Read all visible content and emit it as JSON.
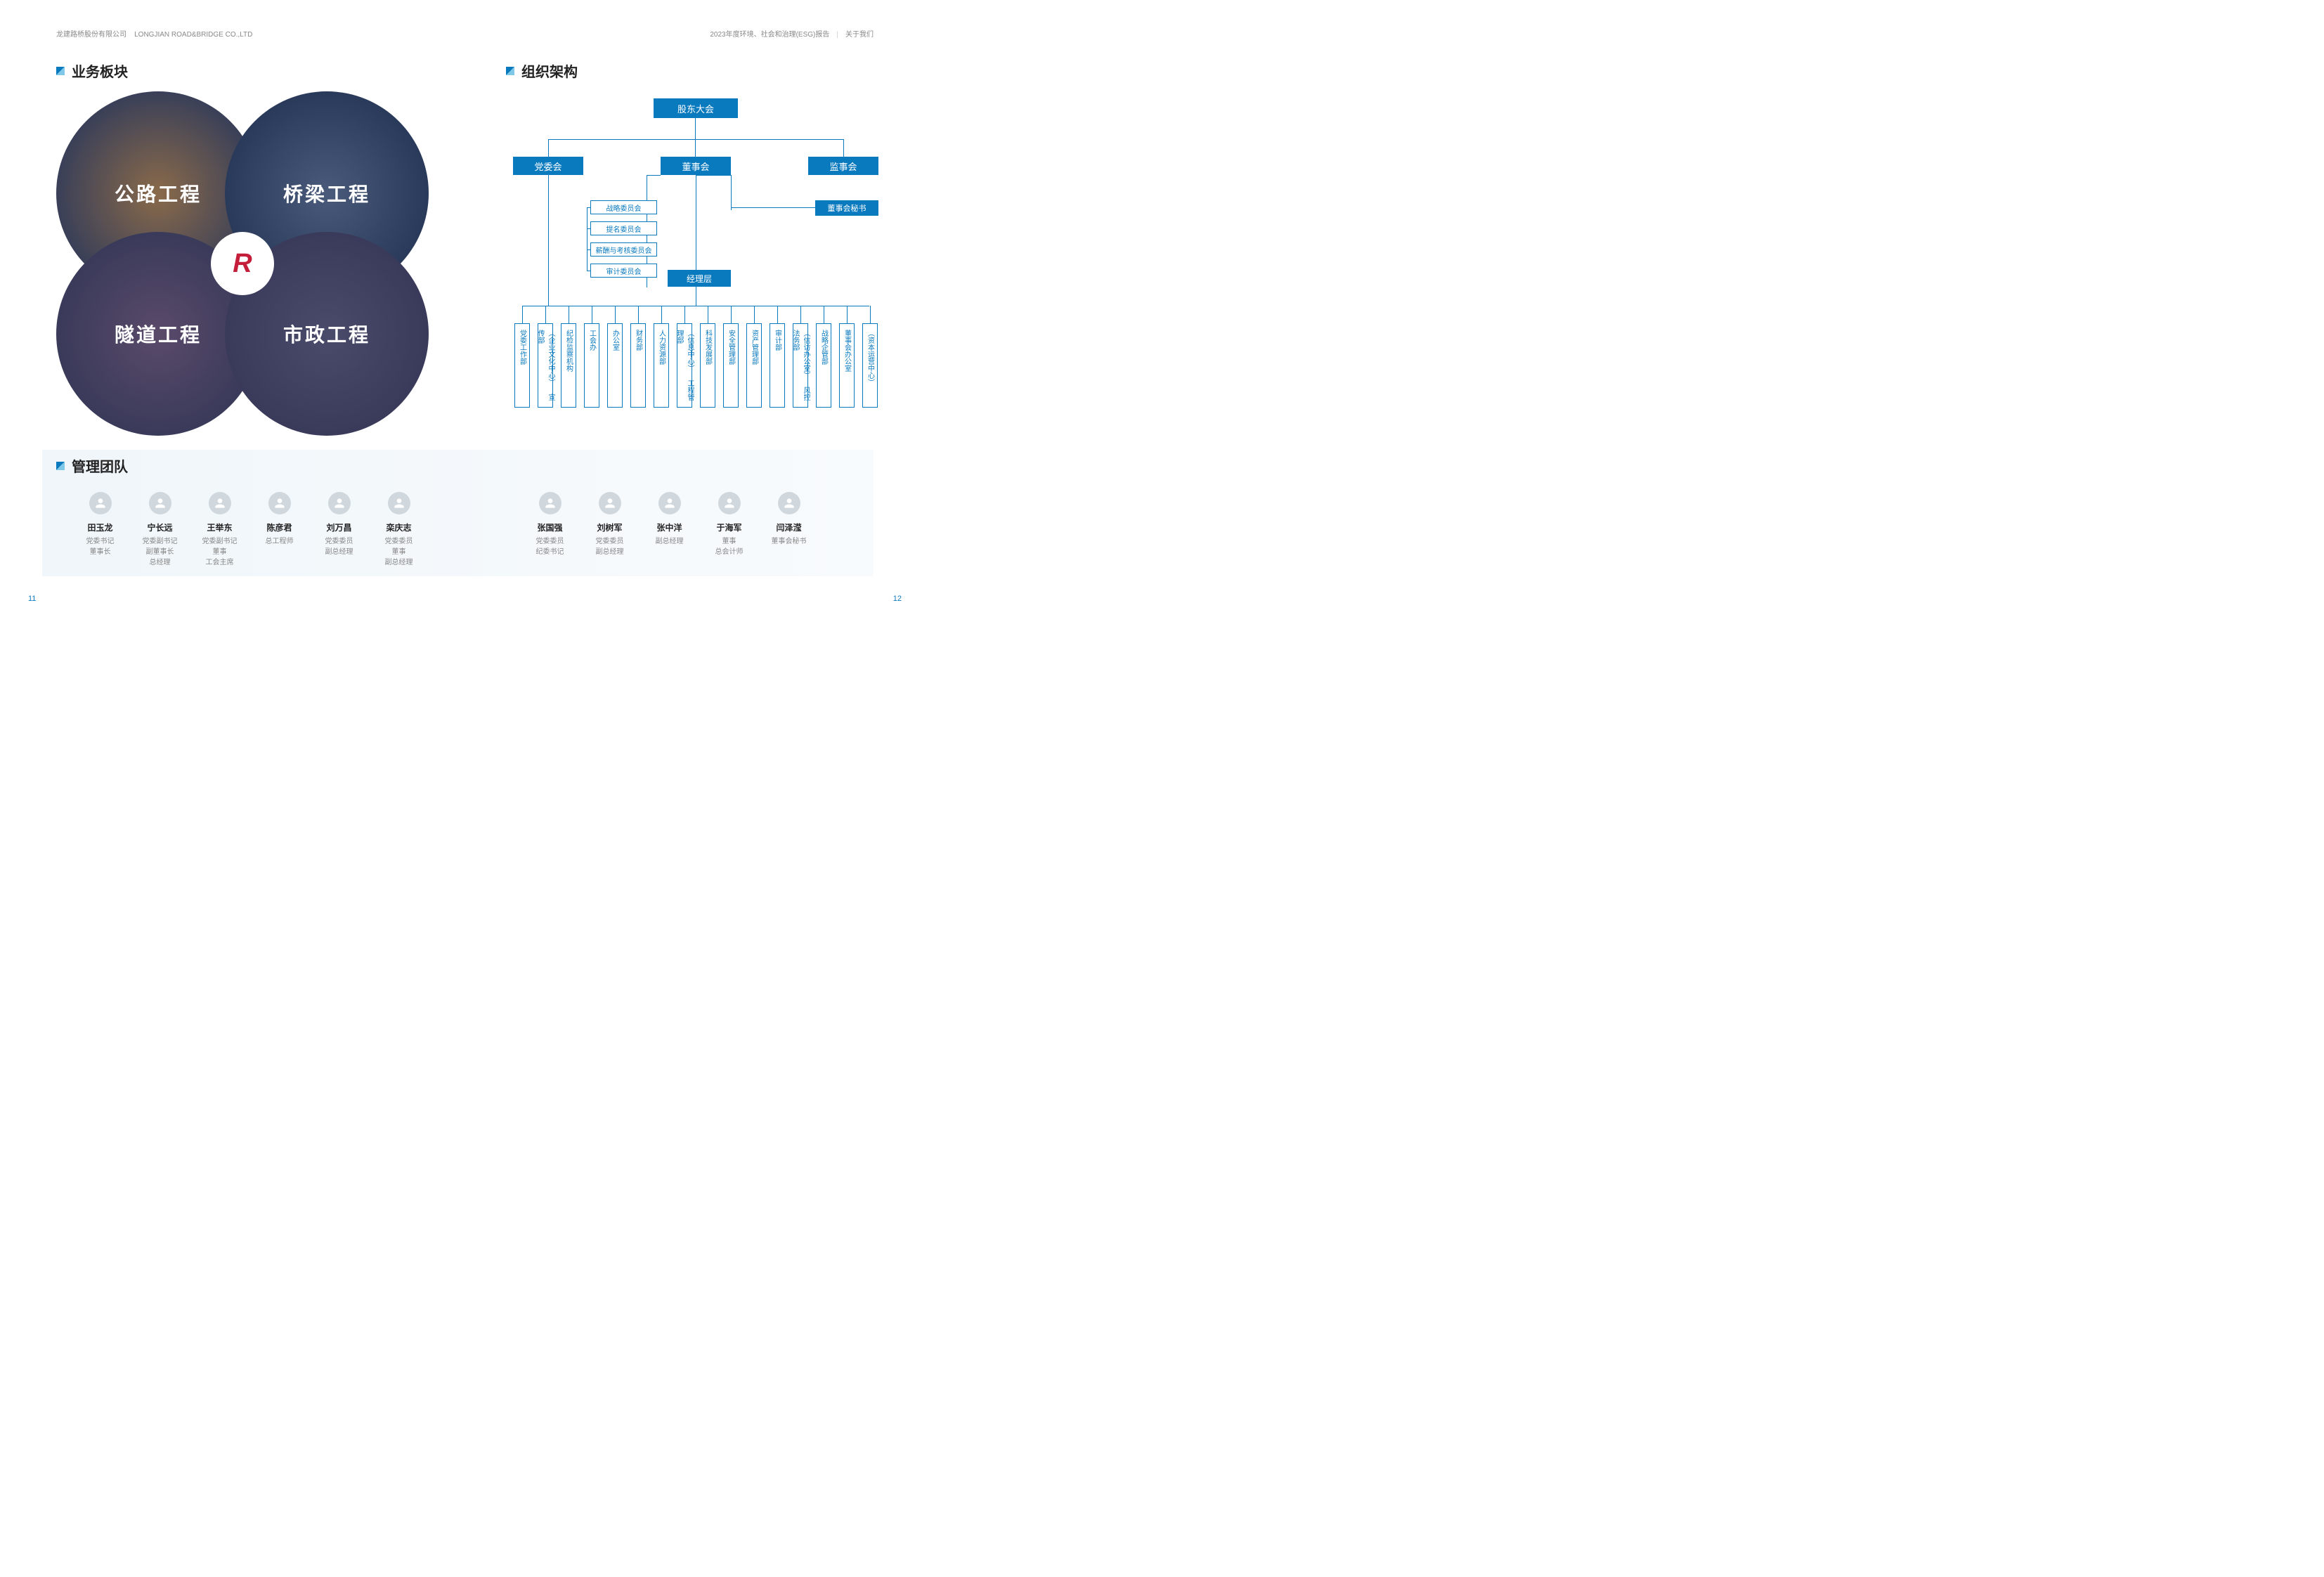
{
  "header": {
    "company_cn": "龙建路桥股份有限公司",
    "company_en": "LONGJIAN ROAD&BRIDGE CO.,LTD",
    "report": "2023年度环境、社会和治理(ESG)报告",
    "section": "关于我们"
  },
  "page_left": "11",
  "page_right": "12",
  "business": {
    "title": "业务板块",
    "venn": {
      "tl": "公路工程",
      "tr": "桥梁工程",
      "bl": "隧道工程",
      "br": "市政工程"
    }
  },
  "org": {
    "title": "组织架构",
    "colors": {
      "primary": "#0a7abf",
      "line": "#0a7abf"
    },
    "l1": "股东大会",
    "l2": [
      {
        "label": "党委会",
        "type": "filled"
      },
      {
        "label": "董事会",
        "type": "filled"
      },
      {
        "label": "监事会",
        "type": "filled"
      }
    ],
    "committees": [
      "战略委员会",
      "提名委员会",
      "薪酬与考核委员会",
      "审计委员会"
    ],
    "secretary": "董事会秘书",
    "management": "经理层",
    "departments": [
      "党委工作部",
      "（企业文化中心）\n宣传部",
      "纪检监察机构",
      "工会办",
      "办公室",
      "财务部",
      "人力资源部",
      "（信息中心）\n工程管理部",
      "科技发展部",
      "安全管理部",
      "资产管理部",
      "审计部",
      "（信访办公室）\n风控法务部",
      "战略企管部",
      "董事会办公室",
      "（资本运营中心）"
    ]
  },
  "team": {
    "title": "管理团队",
    "left_members": [
      {
        "name": "田玉龙",
        "title": "党委书记\n董事长"
      },
      {
        "name": "宁长远",
        "title": "党委副书记\n副董事长\n总经理"
      },
      {
        "name": "王举东",
        "title": "党委副书记\n董事\n工会主席"
      },
      {
        "name": "陈彦君",
        "title": "总工程师"
      },
      {
        "name": "刘万昌",
        "title": "党委委员\n副总经理"
      },
      {
        "name": "栾庆志",
        "title": "党委委员\n董事\n副总经理"
      }
    ],
    "right_members": [
      {
        "name": "张国强",
        "title": "党委委员\n纪委书记"
      },
      {
        "name": "刘树军",
        "title": "党委委员\n副总经理"
      },
      {
        "name": "张中洋",
        "title": "副总经理"
      },
      {
        "name": "于海军",
        "title": "董事\n总会计师"
      },
      {
        "name": "闫泽滢",
        "title": "董事会秘书"
      }
    ]
  }
}
